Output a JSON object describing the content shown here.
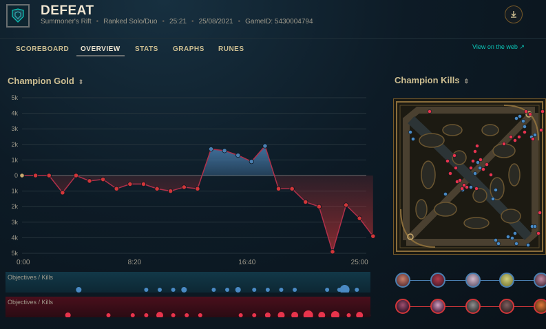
{
  "header": {
    "result": "DEFEAT",
    "map_name": "Summoner's Rift",
    "queue": "Ranked Solo/Duo",
    "duration": "25:21",
    "date": "25/08/2021",
    "game_id": "GameID: 5430004794",
    "download_icon": "download-icon",
    "crest_icon": "team-crest-icon"
  },
  "tabs": [
    {
      "label": "SCOREBOARD"
    },
    {
      "label": "OVERVIEW",
      "active": true
    },
    {
      "label": "STATS"
    },
    {
      "label": "GRAPHS"
    },
    {
      "label": "RUNES"
    }
  ],
  "view_on_web": "View on the web ↗",
  "gold_section": {
    "title": "Champion Gold",
    "sort_icon": "⇕"
  },
  "kills_section": {
    "title": "Champion Kills",
    "sort_icon": "⇕"
  },
  "chart_data": {
    "type": "area",
    "y_tick_labels": [
      "5k",
      "4k",
      "3k",
      "2k",
      "1k",
      "0",
      "1k",
      "2k",
      "3k",
      "4k",
      "5k"
    ],
    "ylim": [
      -5000,
      5000
    ],
    "x_tick_labels": [
      "0:00",
      "8:20",
      "16:40",
      "25:00"
    ],
    "x_ticks_minutes": [
      0,
      8.333,
      16.667,
      25
    ],
    "xlim": [
      0,
      25.5
    ],
    "gold_diff": {
      "x": [
        0,
        1,
        2,
        3,
        4,
        5,
        6,
        7,
        8,
        9,
        10,
        11,
        12,
        13,
        14,
        15,
        16,
        17,
        18,
        19,
        20,
        21,
        22,
        23,
        24,
        25,
        26
      ],
      "values": [
        0,
        0,
        0,
        -1100,
        0,
        -350,
        -250,
        -850,
        -550,
        -550,
        -850,
        -1000,
        -750,
        -850,
        1700,
        1600,
        1300,
        900,
        1900,
        -850,
        -850,
        -1700,
        -2000,
        -4900,
        -1900,
        -2750,
        -3900
      ]
    },
    "colors": {
      "ahead": "#4a7fb0",
      "behind": "#d13639"
    }
  },
  "objectives": {
    "blue_label": "Objectives / Kills",
    "red_label": "Objectives / Kills",
    "blue_events": [
      {
        "t": 4.2,
        "s": 4
      },
      {
        "t": 9.2,
        "s": 3
      },
      {
        "t": 10.2,
        "s": 3
      },
      {
        "t": 11.2,
        "s": 3
      },
      {
        "t": 12.0,
        "s": 4
      },
      {
        "t": 14.2,
        "s": 3
      },
      {
        "t": 15.2,
        "s": 3
      },
      {
        "t": 16.0,
        "s": 4
      },
      {
        "t": 17.2,
        "s": 3
      },
      {
        "t": 18.2,
        "s": 3
      },
      {
        "t": 19.2,
        "s": 3
      },
      {
        "t": 20.2,
        "s": 3
      },
      {
        "t": 22.6,
        "s": 3
      },
      {
        "t": 23.5,
        "s": 3
      },
      {
        "t": 23.9,
        "s": 7
      },
      {
        "t": 24.8,
        "s": 3
      }
    ],
    "red_events": [
      {
        "t": 3.4,
        "s": 4
      },
      {
        "t": 6.4,
        "s": 3
      },
      {
        "t": 8.2,
        "s": 3
      },
      {
        "t": 9.2,
        "s": 3
      },
      {
        "t": 10.2,
        "s": 5
      },
      {
        "t": 11.2,
        "s": 3
      },
      {
        "t": 12.2,
        "s": 3
      },
      {
        "t": 13.2,
        "s": 3
      },
      {
        "t": 16.2,
        "s": 3
      },
      {
        "t": 17.2,
        "s": 3
      },
      {
        "t": 18.2,
        "s": 4
      },
      {
        "t": 19.2,
        "s": 5
      },
      {
        "t": 20.2,
        "s": 5
      },
      {
        "t": 21.2,
        "s": 7
      },
      {
        "t": 22.2,
        "s": 5
      },
      {
        "t": 23.2,
        "s": 6
      },
      {
        "t": 24.2,
        "s": 3
      },
      {
        "t": 25.0,
        "s": 5
      },
      {
        "t": 26.0,
        "s": 4
      }
    ]
  },
  "kill_map": {
    "blue_kills": [
      [
        24,
        48
      ],
      [
        28,
        58
      ],
      [
        75,
        138
      ],
      [
        100,
        132
      ],
      [
        112,
        128
      ],
      [
        118,
        108
      ],
      [
        125,
        100
      ],
      [
        122,
        92
      ],
      [
        144,
        145
      ],
      [
        148,
        132
      ],
      [
        178,
        28
      ],
      [
        183,
        25
      ],
      [
        188,
        32
      ],
      [
        190,
        40
      ],
      [
        200,
        55
      ],
      [
        205,
        52
      ],
      [
        201,
        185
      ],
      [
        148,
        205
      ],
      [
        152,
        210
      ],
      [
        166,
        200
      ],
      [
        172,
        202
      ],
      [
        176,
        195
      ],
      [
        178,
        210
      ],
      [
        195,
        212
      ],
      [
        205,
        185
      ]
    ],
    "red_kills": [
      [
        52,
        18
      ],
      [
        88,
        82
      ],
      [
        90,
        100
      ],
      [
        92,
        120
      ],
      [
        96,
        118
      ],
      [
        99,
        130
      ],
      [
        102,
        125
      ],
      [
        106,
        128
      ],
      [
        112,
        100
      ],
      [
        115,
        90
      ],
      [
        118,
        76
      ],
      [
        121,
        68
      ],
      [
        126,
        88
      ],
      [
        130,
        102
      ],
      [
        135,
        95
      ],
      [
        141,
        110
      ],
      [
        160,
        65
      ],
      [
        170,
        55
      ],
      [
        176,
        60
      ],
      [
        182,
        55
      ],
      [
        190,
        48
      ],
      [
        192,
        18
      ],
      [
        198,
        22
      ],
      [
        202,
        58
      ],
      [
        210,
        195
      ],
      [
        212,
        165
      ],
      [
        214,
        45
      ],
      [
        216,
        18
      ],
      [
        78,
        90
      ],
      [
        82,
        108
      ],
      [
        120,
        130
      ]
    ]
  },
  "champions": {
    "blue_team": [
      "champion-portrait-1",
      "champion-portrait-2",
      "champion-portrait-3",
      "champion-portrait-4",
      "champion-portrait-5"
    ],
    "red_team": [
      "champion-portrait-6",
      "champion-portrait-7",
      "champion-portrait-8",
      "champion-portrait-9",
      "champion-portrait-10"
    ]
  }
}
